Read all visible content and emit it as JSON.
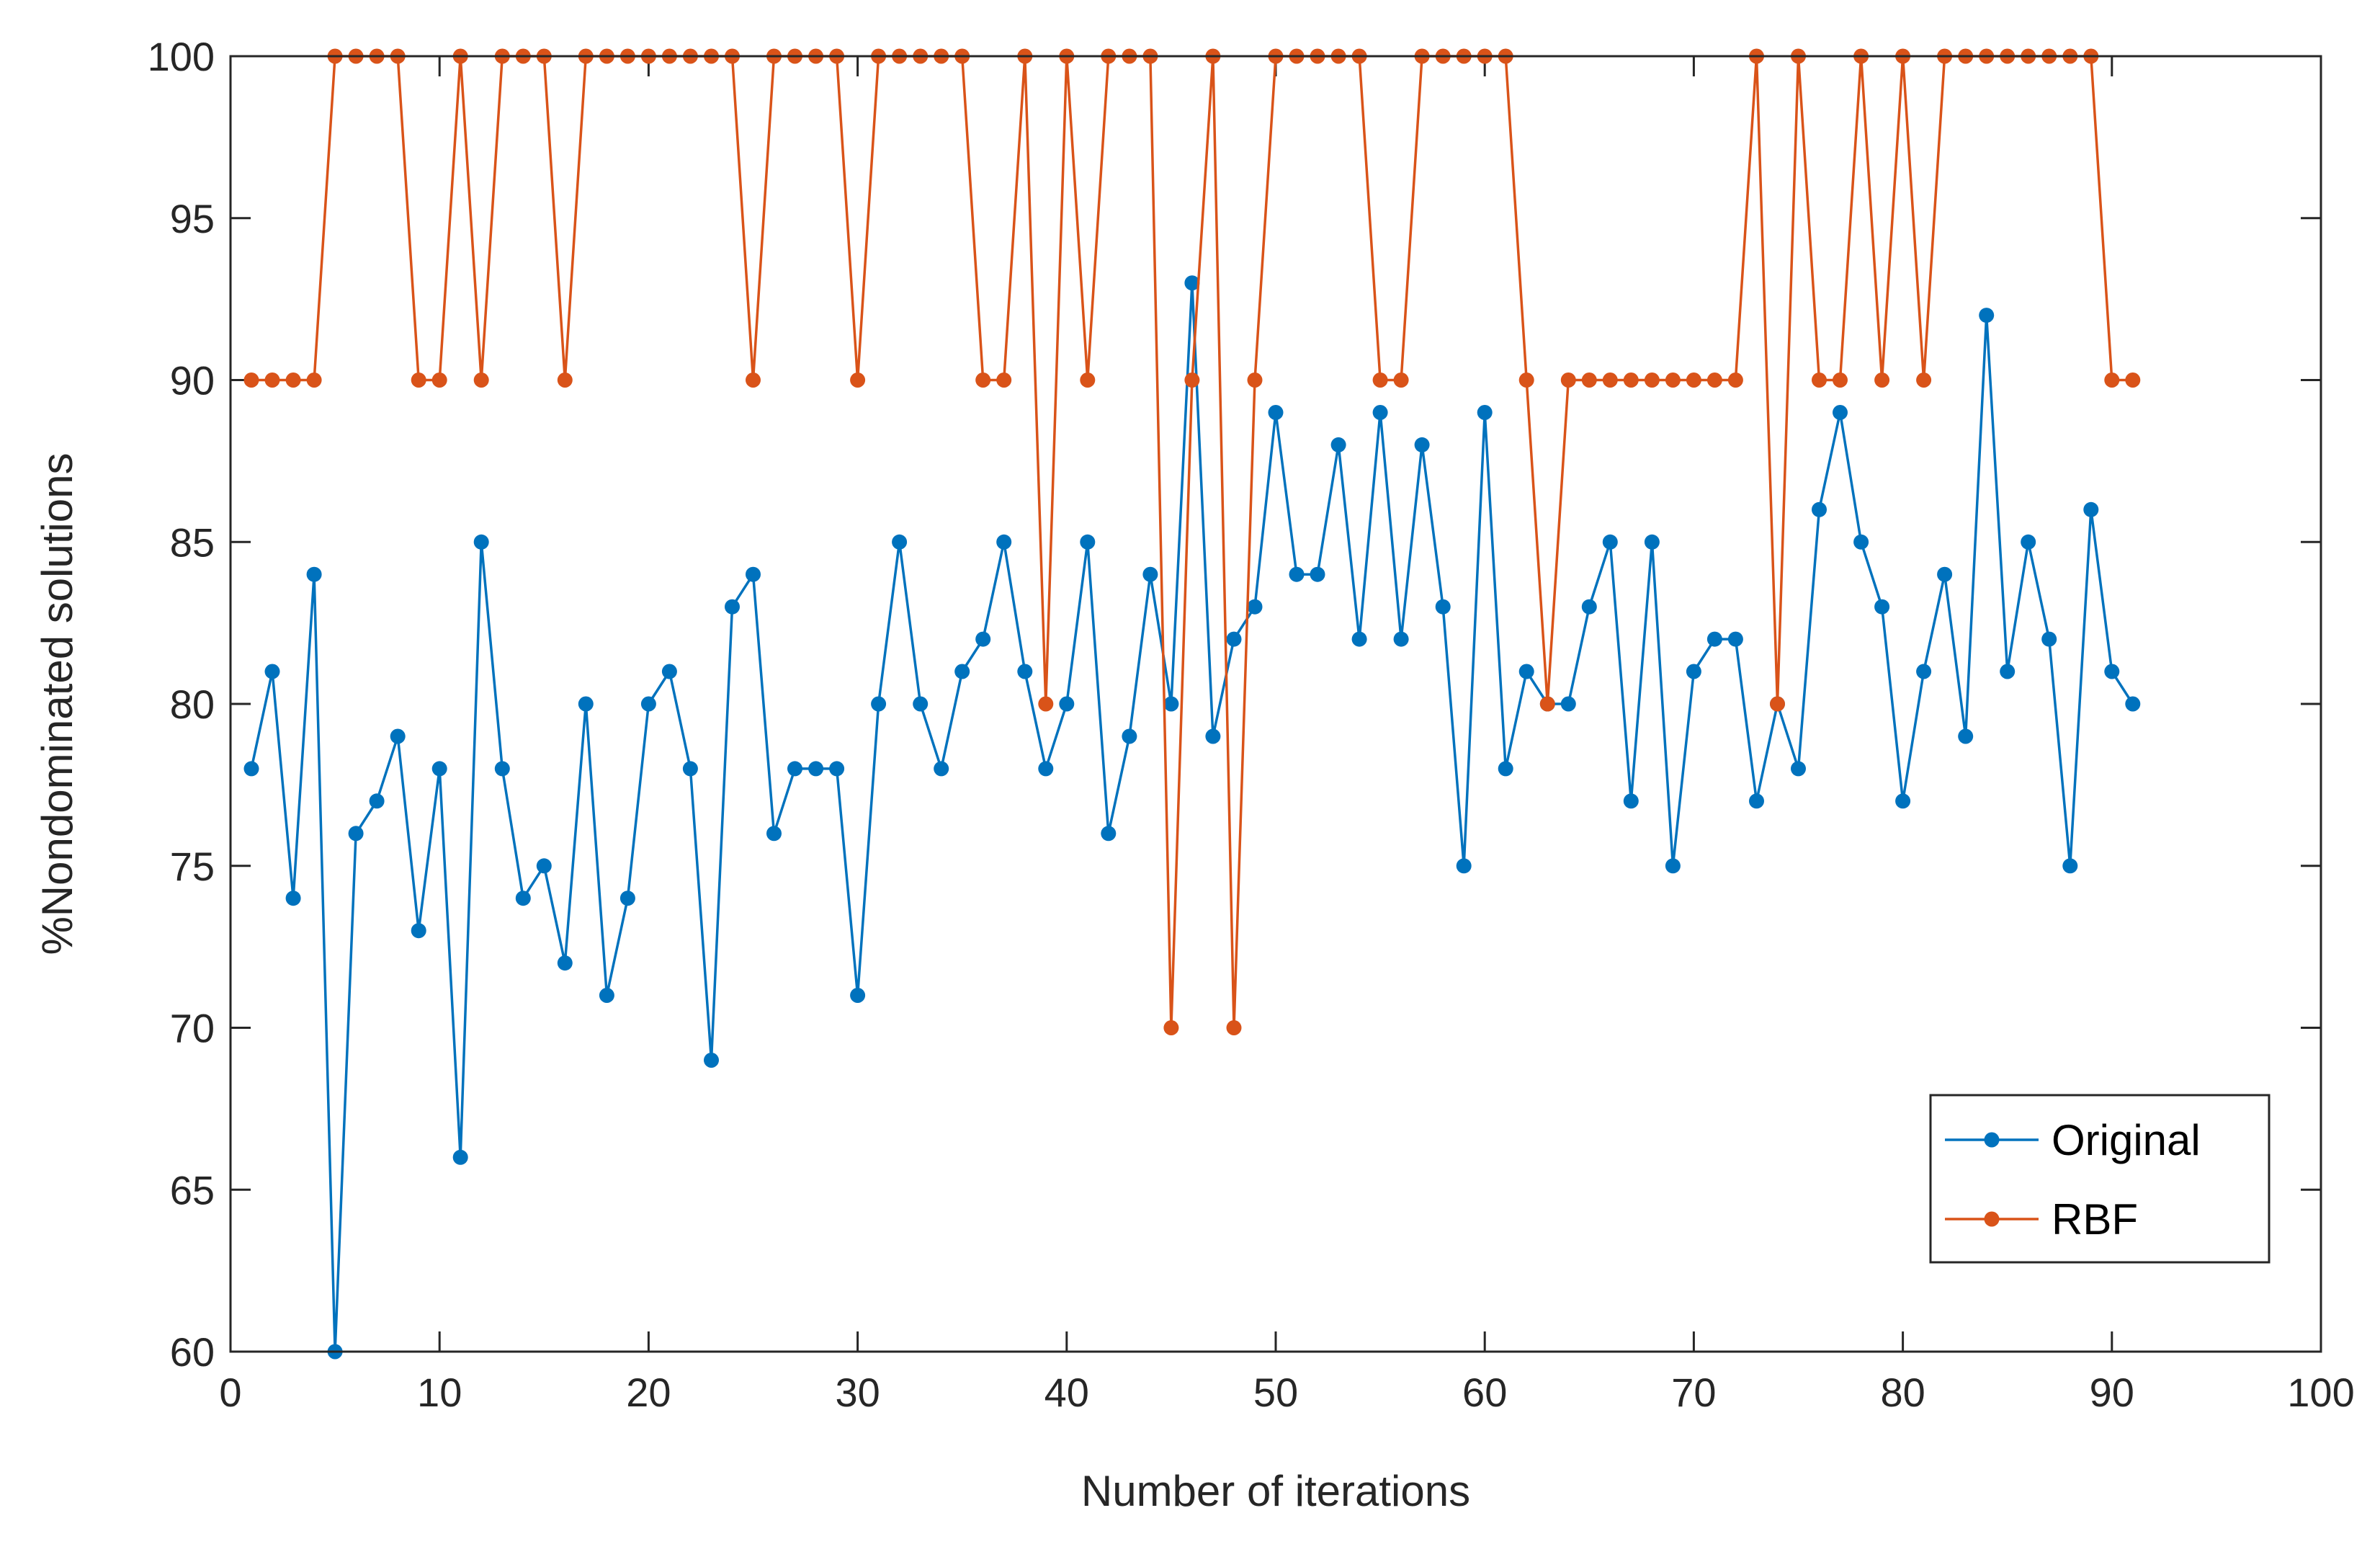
{
  "chart_data": {
    "type": "line",
    "title": "",
    "xlabel": "Number of iterations",
    "ylabel": "%Nondominated solutions",
    "xlim": [
      0,
      100
    ],
    "ylim": [
      60,
      100
    ],
    "xticks": [
      0,
      10,
      20,
      30,
      40,
      50,
      60,
      70,
      80,
      90,
      100
    ],
    "yticks": [
      60,
      65,
      70,
      75,
      80,
      85,
      90,
      95,
      100
    ],
    "grid": false,
    "legend_position": "bottom-right",
    "x": [
      1,
      2,
      3,
      4,
      5,
      6,
      7,
      8,
      9,
      10,
      11,
      12,
      13,
      14,
      15,
      16,
      17,
      18,
      19,
      20,
      21,
      22,
      23,
      24,
      25,
      26,
      27,
      28,
      29,
      30,
      31,
      32,
      33,
      34,
      35,
      36,
      37,
      38,
      39,
      40,
      41,
      42,
      43,
      44,
      45,
      46,
      47,
      48,
      49,
      50,
      51,
      52,
      53,
      54,
      55,
      56,
      57,
      58,
      59,
      60,
      61,
      62,
      63,
      64,
      65,
      66,
      67,
      68,
      69,
      70,
      71,
      72,
      73,
      74,
      75,
      76,
      77,
      78,
      79,
      80,
      81,
      82,
      83,
      84,
      85,
      86,
      87,
      88,
      89,
      90,
      91
    ],
    "series": [
      {
        "name": "Original",
        "color": "#0072BD",
        "values": [
          78,
          81,
          74,
          84,
          60,
          76,
          77,
          79,
          73,
          78,
          66,
          85,
          78,
          74,
          75,
          72,
          80,
          71,
          74,
          80,
          81,
          78,
          69,
          83,
          84,
          76,
          78,
          78,
          78,
          71,
          80,
          85,
          80,
          78,
          81,
          82,
          85,
          81,
          78,
          80,
          85,
          76,
          79,
          84,
          80,
          93,
          79,
          82,
          83,
          89,
          84,
          84,
          88,
          82,
          89,
          82,
          88,
          83,
          75,
          89,
          78,
          81,
          80,
          80,
          83,
          85,
          77,
          85,
          75,
          81,
          82,
          82,
          77,
          80,
          78,
          86,
          89,
          85,
          83,
          77,
          81,
          84,
          79,
          92,
          81,
          85,
          82,
          75,
          86,
          81,
          80
        ]
      },
      {
        "name": "RBF",
        "color": "#D95319",
        "values": [
          90,
          90,
          90,
          90,
          100,
          100,
          100,
          100,
          90,
          90,
          100,
          90,
          100,
          100,
          100,
          90,
          100,
          100,
          100,
          100,
          100,
          100,
          100,
          100,
          90,
          100,
          100,
          100,
          100,
          90,
          100,
          100,
          100,
          100,
          100,
          90,
          90,
          100,
          80,
          100,
          90,
          100,
          100,
          100,
          70,
          90,
          100,
          70,
          90,
          100,
          100,
          100,
          100,
          100,
          90,
          90,
          100,
          100,
          100,
          100,
          100,
          90,
          80,
          90,
          90,
          90,
          90,
          90,
          90,
          90,
          90,
          90,
          100,
          80,
          100,
          90,
          90,
          100,
          90,
          100,
          90,
          100,
          100,
          100,
          100,
          100,
          100,
          100,
          100,
          90,
          90
        ]
      }
    ]
  }
}
